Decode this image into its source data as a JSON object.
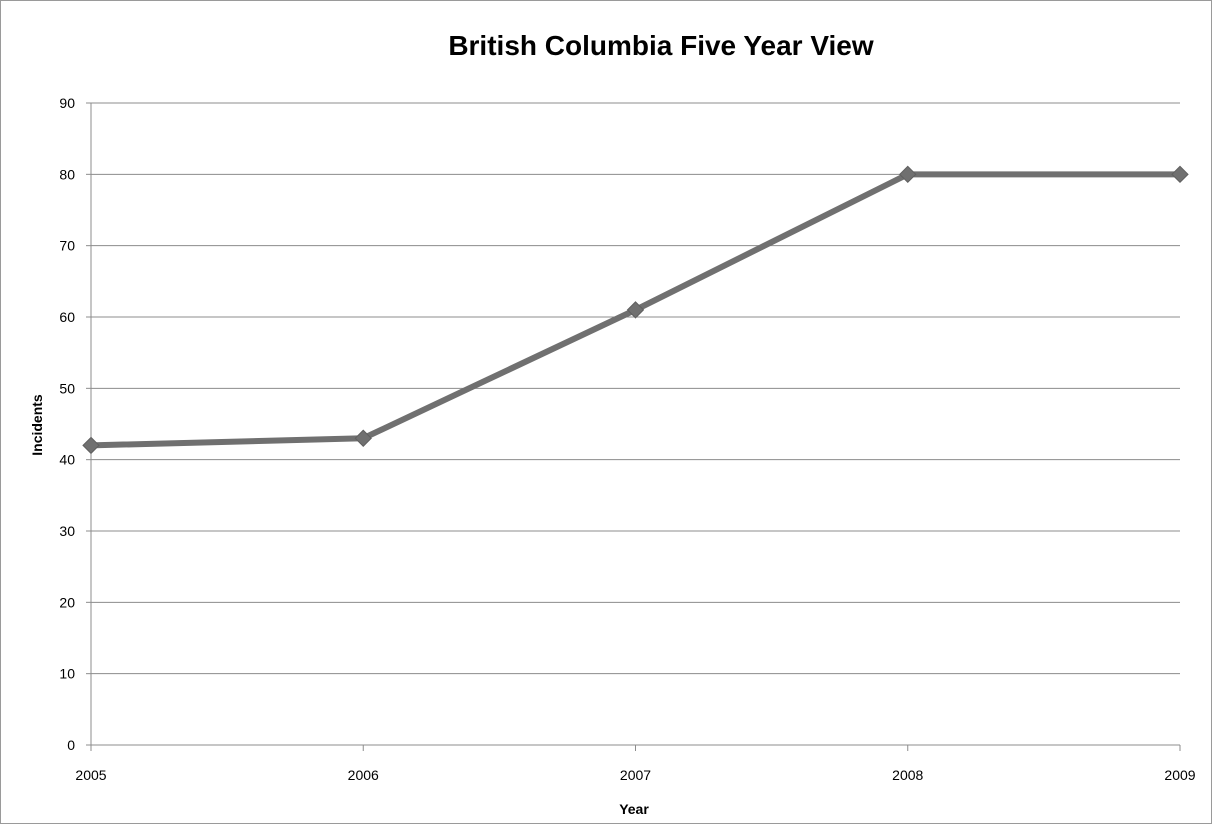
{
  "chart_data": {
    "type": "line",
    "title": "British Columbia Five Year View",
    "xlabel": "Year",
    "ylabel": "Incidents",
    "categories": [
      "2005",
      "2006",
      "2007",
      "2008",
      "2009"
    ],
    "series": [
      {
        "values": [
          42,
          43,
          61,
          80,
          80
        ],
        "color": "#707070",
        "marker": "diamond"
      }
    ],
    "ylim": [
      0,
      90
    ],
    "yticks": [
      "0",
      "10",
      "20",
      "30",
      "40",
      "50",
      "60",
      "70",
      "80",
      "90"
    ],
    "grid": true,
    "legend": "none",
    "colors": {
      "gridline": "#8c8c8c",
      "axis": "#8c8c8c",
      "text": "#000000"
    }
  }
}
